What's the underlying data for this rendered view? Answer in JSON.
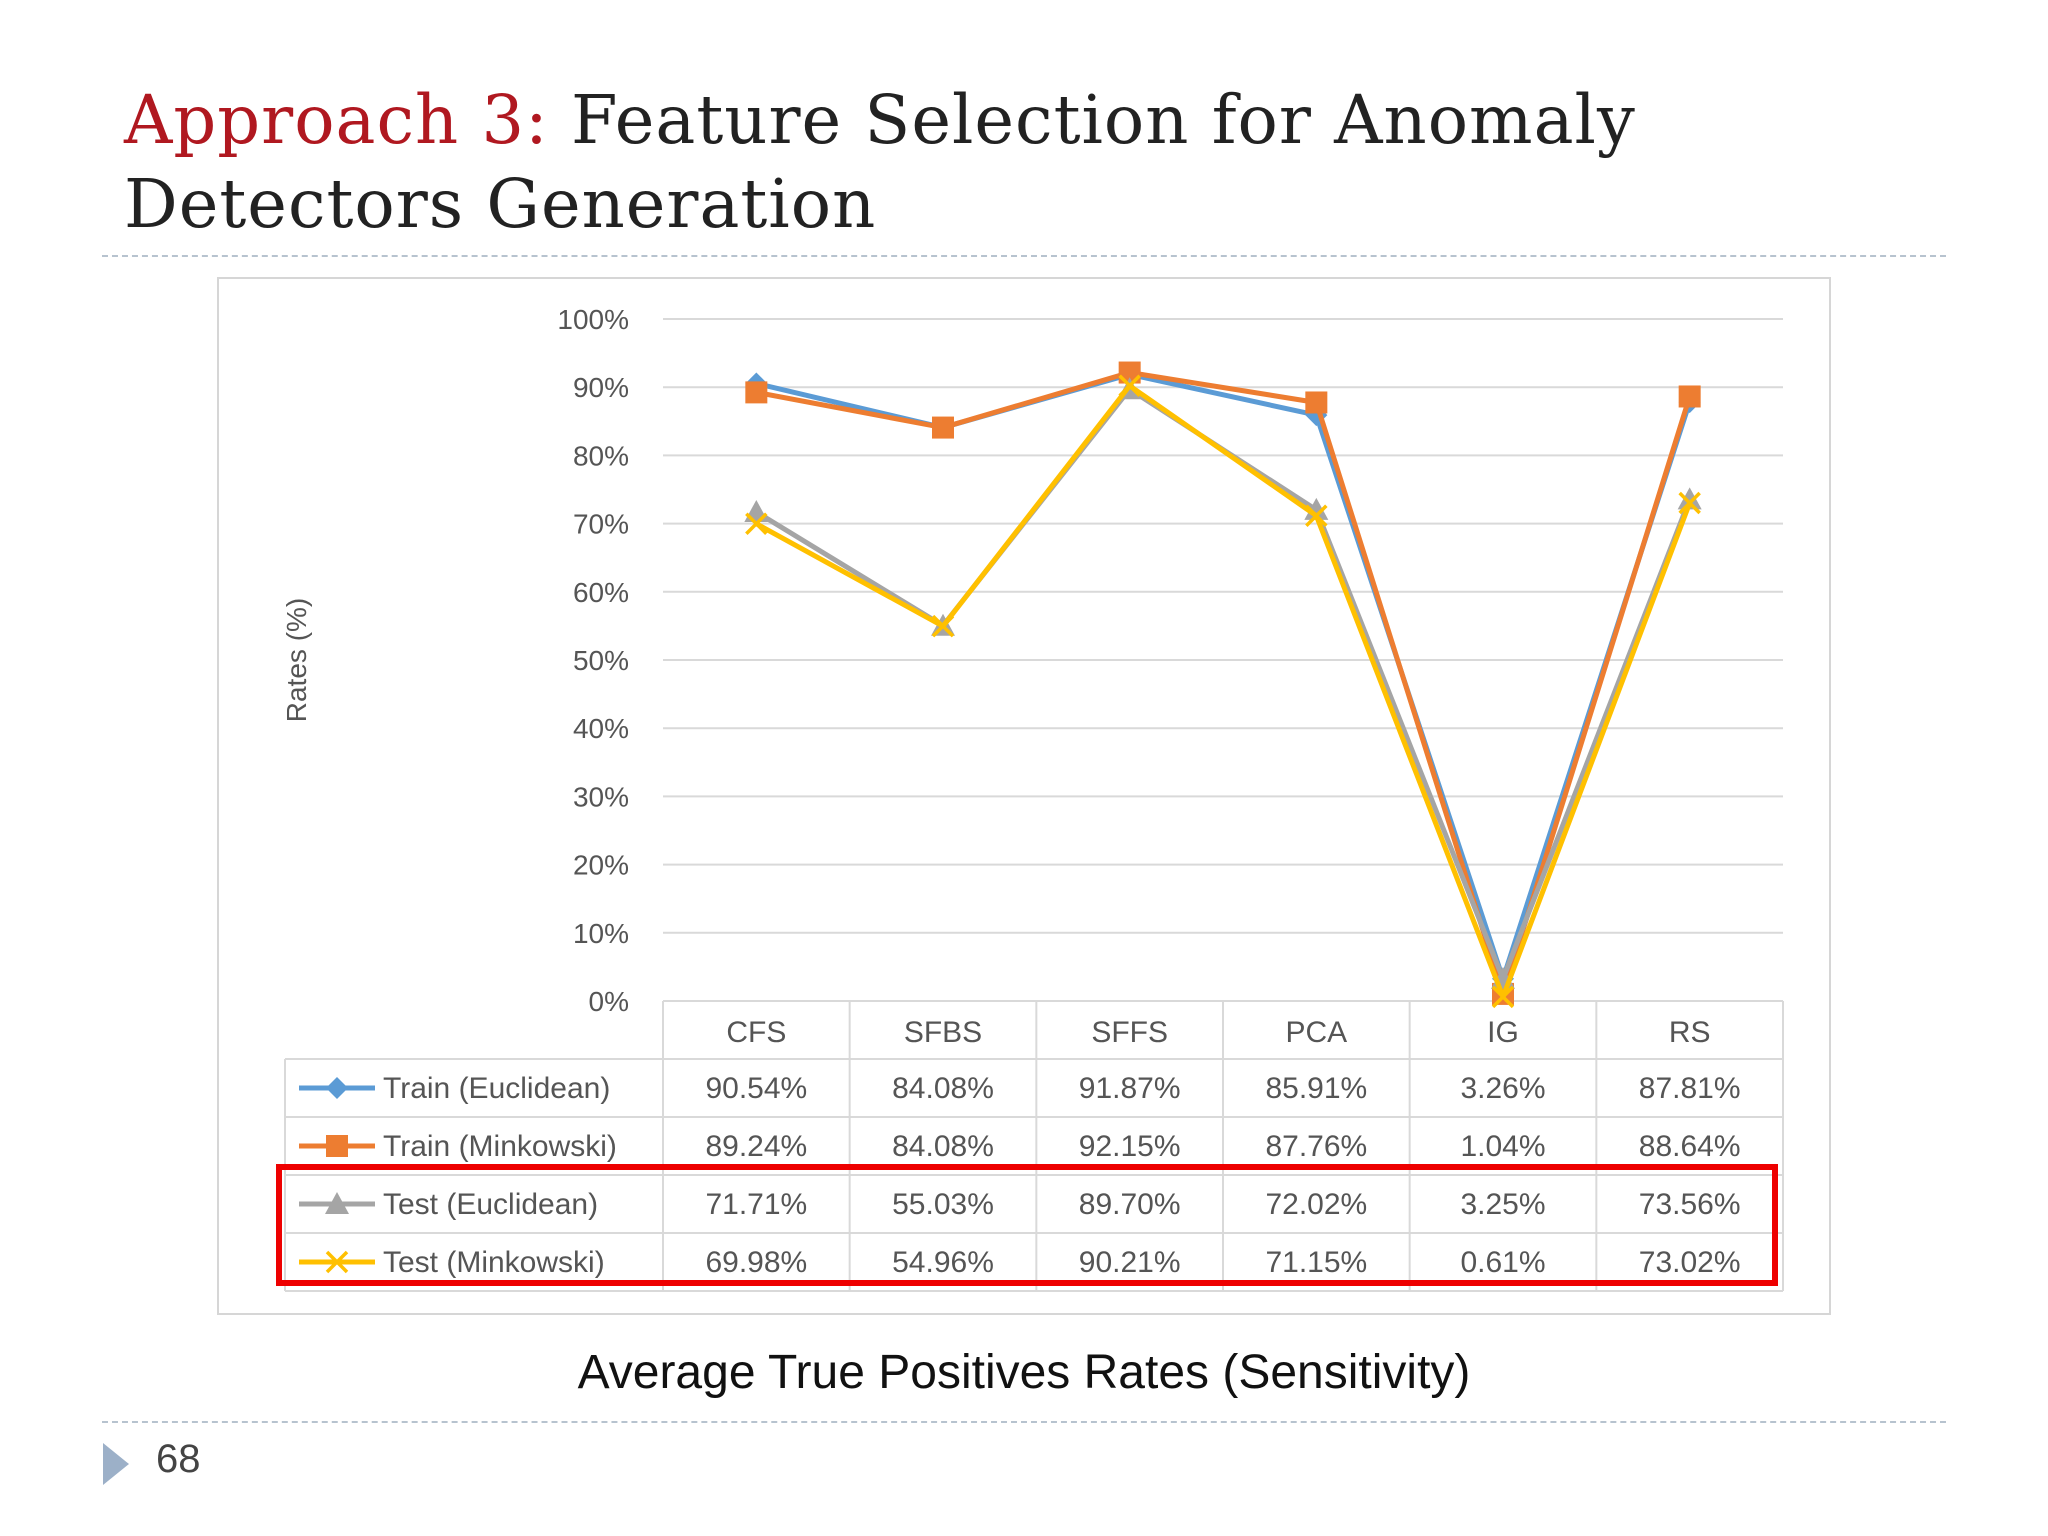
{
  "slide": {
    "title_accent": "Approach 3:",
    "title_rest": " Feature Selection for Anomaly Detectors Generation",
    "caption": "Average True Positives Rates (Sensitivity)",
    "page_number": "68"
  },
  "chart_data": {
    "type": "line",
    "title": "",
    "ylabel": "Rates (%)",
    "xlabel": "",
    "ylim": [
      0,
      100
    ],
    "yticks": [
      "0%",
      "10%",
      "20%",
      "30%",
      "40%",
      "50%",
      "60%",
      "70%",
      "80%",
      "90%",
      "100%"
    ],
    "grid": true,
    "legend": "data-table",
    "categories": [
      "CFS",
      "SFBS",
      "SFFS",
      "PCA",
      "IG",
      "RS"
    ],
    "series": [
      {
        "name": "Train (Euclidean)",
        "color": "#5b9bd5",
        "marker": "diamond",
        "values": [
          90.54,
          84.08,
          91.87,
          85.91,
          3.26,
          87.81
        ],
        "labels": [
          "90.54%",
          "84.08%",
          "91.87%",
          "85.91%",
          "3.26%",
          "87.81%"
        ]
      },
      {
        "name": "Train (Minkowski)",
        "color": "#ed7d31",
        "marker": "square",
        "values": [
          89.24,
          84.08,
          92.15,
          87.76,
          1.04,
          88.64
        ],
        "labels": [
          "89.24%",
          "84.08%",
          "92.15%",
          "87.76%",
          "1.04%",
          "88.64%"
        ]
      },
      {
        "name": "Test (Euclidean)",
        "color": "#a5a5a5",
        "marker": "triangle",
        "values": [
          71.71,
          55.03,
          89.7,
          72.02,
          3.25,
          73.56
        ],
        "labels": [
          "71.71%",
          "55.03%",
          "89.70%",
          "72.02%",
          "3.25%",
          "73.56%"
        ]
      },
      {
        "name": "Test (Minkowski)",
        "color": "#ffc000",
        "marker": "x",
        "values": [
          69.98,
          54.96,
          90.21,
          71.15,
          0.61,
          73.02
        ],
        "labels": [
          "69.98%",
          "54.96%",
          "90.21%",
          "71.15%",
          "0.61%",
          "73.02%"
        ]
      }
    ],
    "highlight_rows": [
      "Test (Euclidean)",
      "Test (Minkowski)"
    ],
    "highlight_color": "#ee0000"
  }
}
